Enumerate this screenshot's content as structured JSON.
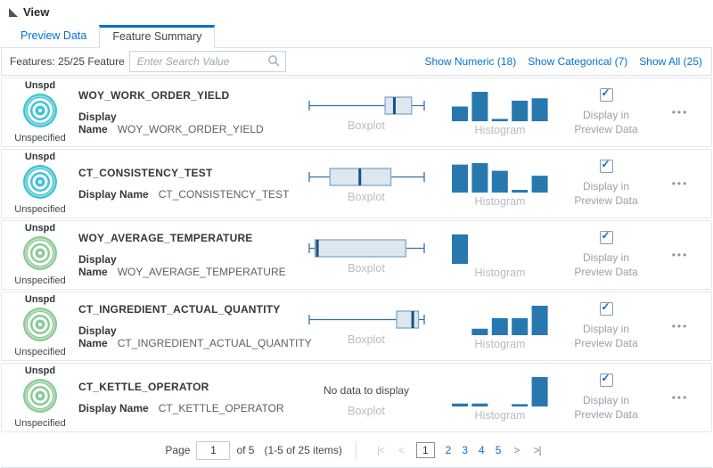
{
  "header": {
    "title": "View"
  },
  "tabs": [
    {
      "label": "Preview Data",
      "active": false
    },
    {
      "label": "Feature Summary",
      "active": true
    }
  ],
  "toolbar": {
    "features_label": "Features: 25/25 Feature",
    "search_placeholder": "Enter Search Value",
    "links": [
      {
        "label": "Show Numeric (18)"
      },
      {
        "label": "Show Categorical (7)"
      },
      {
        "label": "Show All (25)"
      }
    ]
  },
  "row_labels": {
    "display_name_label": "Display Name",
    "boxplot_label": "Boxplot",
    "histogram_label": "Histogram",
    "checkbox_line1": "Display in",
    "checkbox_line2": "Preview Data",
    "menu_icon": "•••"
  },
  "rows": [
    {
      "badge_top": "Unspd",
      "badge_bottom": "Unspecified",
      "icon_color": "#3ec3d5",
      "name": "WOY_WORK_ORDER_YIELD",
      "display_name": "WOY_WORK_ORDER_YIELD",
      "boxplot": {
        "min": 0,
        "q1": 0.66,
        "median": 0.74,
        "q3": 0.89,
        "max": 1
      },
      "histogram": [
        0.5,
        1.0,
        0.08,
        0.7,
        0.78
      ],
      "checked": true
    },
    {
      "badge_top": "Unspd",
      "badge_bottom": "Unspecified",
      "icon_color": "#3ec3d5",
      "name": "CT_CONSISTENCY_TEST",
      "display_name": "CT_CONSISTENCY_TEST",
      "boxplot": {
        "min": 0,
        "q1": 0.18,
        "median": 0.44,
        "q3": 0.71,
        "max": 1
      },
      "histogram": [
        0.95,
        1.0,
        0.74,
        0.09,
        0.57
      ],
      "checked": true
    },
    {
      "badge_top": "Unspd",
      "badge_bottom": "Unspecified",
      "icon_color": "#8cc996",
      "name": "WOY_AVERAGE_TEMPERATURE",
      "display_name": "WOY_AVERAGE_TEMPERATURE",
      "boxplot": {
        "min": 0,
        "q1": 0.05,
        "median": 0.07,
        "q3": 0.84,
        "max": 1
      },
      "histogram": [
        1.0,
        0,
        0,
        0,
        0
      ],
      "checked": true
    },
    {
      "badge_top": "Unspd",
      "badge_bottom": "Unspecified",
      "icon_color": "#8cc996",
      "name": "CT_INGREDIENT_ACTUAL_QUANTITY",
      "display_name": "CT_INGREDIENT_ACTUAL_QUANTITY",
      "boxplot": {
        "min": 0,
        "q1": 0.76,
        "median": 0.9,
        "q3": 0.95,
        "max": 1
      },
      "histogram": [
        0,
        0.22,
        0.58,
        0.58,
        1.0
      ],
      "checked": true
    },
    {
      "badge_top": "Unspd",
      "badge_bottom": "Unspecified",
      "icon_color": "#8cc996",
      "name": "CT_KETTLE_OPERATOR",
      "display_name": "CT_KETTLE_OPERATOR",
      "boxplot": null,
      "no_data_text": "No data to display",
      "histogram": [
        0.1,
        0.1,
        0,
        0.08,
        1.0
      ],
      "checked": true
    }
  ],
  "pagination": {
    "page_label": "Page",
    "page_value": "1",
    "of_label": "of 5",
    "items_label": "(1-5 of 25 items)",
    "first_icon": "|<",
    "prev_icon": "<",
    "pages": [
      "1",
      "2",
      "3",
      "4",
      "5"
    ],
    "current_page": "1",
    "next_icon": ">",
    "last_icon": ">|"
  },
  "colors": {
    "accent": "#0572ce",
    "histogram_bar": "#2878b0",
    "boxplot_fill": "#dce7ef",
    "boxplot_box_border": "#7ea9cb",
    "boxplot_line": "#336fa5",
    "boxplot_median": "#1c4f7c",
    "icon_cyan": "#3ec3d5",
    "icon_green": "#8cc996"
  }
}
